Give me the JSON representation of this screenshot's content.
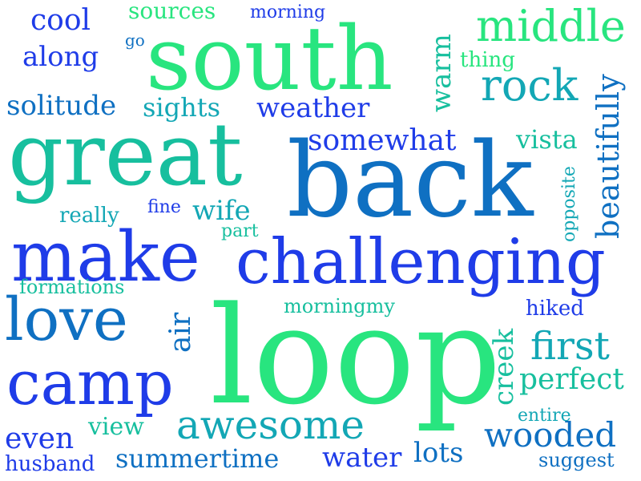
{
  "word_cloud": {
    "words": [
      "south",
      "great",
      "back",
      "loop",
      "challenging",
      "make",
      "love",
      "camp",
      "middle",
      "rock",
      "first",
      "awesome",
      "wooded",
      "perfect",
      "somewhat",
      "weather",
      "solitude",
      "sights",
      "cool",
      "along",
      "sources",
      "morning",
      "go",
      "thing",
      "vista",
      "wife",
      "really",
      "fine",
      "part",
      "formations",
      "morningmy",
      "hiked",
      "even",
      "view",
      "husband",
      "summertime",
      "water",
      "lots",
      "entire",
      "suggest",
      "warm",
      "beautifully",
      "opposite",
      "air",
      "creek"
    ]
  },
  "colors": {
    "blue": "#1f3ce8",
    "teal": "#17bf9e",
    "green": "#28e57f",
    "deep_blue": "#0f70c2",
    "cyan": "#13a7b5"
  }
}
